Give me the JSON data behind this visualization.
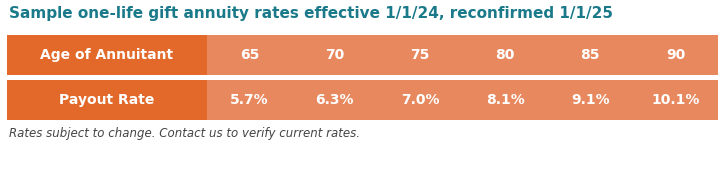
{
  "title": "Sample one-life gift annuity rates effective 1/1/24, reconfirmed 1/1/25",
  "title_color": "#1a7a8a",
  "title_fontsize": 11.0,
  "footer": "Rates subject to change. Contact us to verify current rates.",
  "footer_color": "#444444",
  "footer_fontsize": 8.5,
  "row1_label": "Age of Annuitant",
  "row2_label": "Payout Rate",
  "ages": [
    "65",
    "70",
    "75",
    "80",
    "85",
    "90"
  ],
  "rates": [
    "5.7%",
    "6.3%",
    "7.0%",
    "8.1%",
    "9.1%",
    "10.1%"
  ],
  "label_bg": "#e2692a",
  "data_bg": "#e8885e",
  "text_color": "#ffffff",
  "label_fontsize": 10.0,
  "data_fontsize": 10.0,
  "bg_color": "#ffffff",
  "fig_w": 7.25,
  "fig_h": 1.8,
  "dpi": 100
}
